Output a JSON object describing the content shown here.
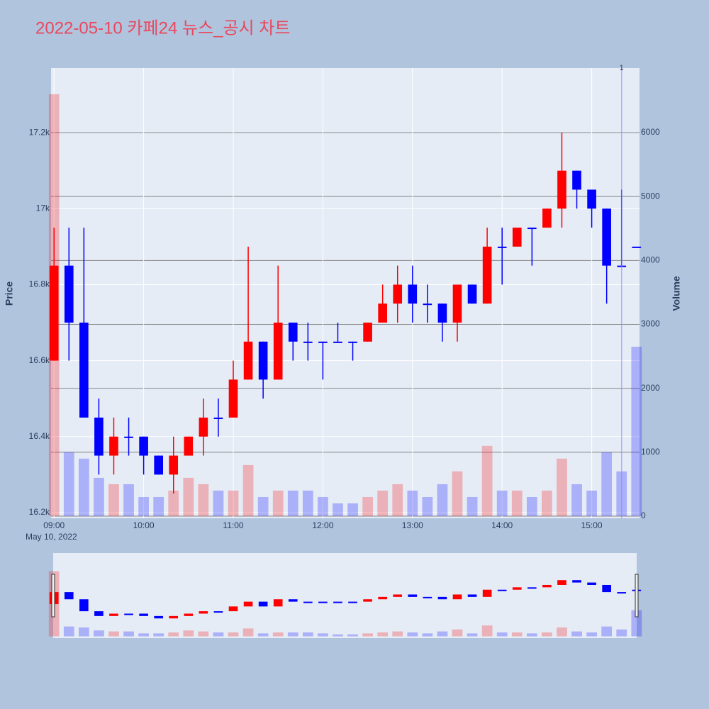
{
  "chart_data": {
    "type": "candlestick",
    "title": "2022-05-10 카페24 뉴스_공시 차트",
    "ylabel": "Price",
    "y2label": "Volume",
    "x_date_label": "May 10, 2022",
    "x": [
      "09:00",
      "09:10",
      "09:20",
      "09:30",
      "09:40",
      "09:50",
      "10:00",
      "10:10",
      "10:20",
      "10:30",
      "10:40",
      "10:50",
      "11:00",
      "11:10",
      "11:20",
      "11:30",
      "11:40",
      "11:50",
      "12:00",
      "12:10",
      "12:20",
      "12:30",
      "12:40",
      "12:50",
      "13:00",
      "13:10",
      "13:20",
      "13:30",
      "13:40",
      "13:50",
      "14:00",
      "14:10",
      "14:20",
      "14:30",
      "14:40",
      "14:50",
      "15:00",
      "15:10",
      "15:20",
      "15:30"
    ],
    "open": [
      16600,
      16850,
      16700,
      16450,
      16350,
      16400,
      16400,
      16350,
      16300,
      16350,
      16400,
      16450,
      16450,
      16550,
      16650,
      16550,
      16700,
      16650,
      16650,
      16650,
      16650,
      16650,
      16700,
      16750,
      16800,
      16750,
      16750,
      16700,
      16800,
      16750,
      16900,
      16900,
      16950,
      16950,
      17000,
      17100,
      17050,
      17000,
      16850,
      16900
    ],
    "high": [
      16950,
      16950,
      16950,
      16500,
      16450,
      16450,
      16400,
      16350,
      16400,
      16400,
      16500,
      16500,
      16600,
      16900,
      16650,
      16850,
      16700,
      16700,
      16650,
      16700,
      16650,
      16700,
      16800,
      16850,
      16850,
      16800,
      16750,
      16800,
      16800,
      16950,
      16950,
      16950,
      16950,
      17000,
      17200,
      17100,
      17050,
      17000,
      17050,
      16900
    ],
    "low": [
      16600,
      16600,
      16450,
      16300,
      16300,
      16350,
      16300,
      16300,
      16250,
      16350,
      16350,
      16400,
      16450,
      16550,
      16500,
      16550,
      16600,
      16600,
      16550,
      16650,
      16600,
      16650,
      16700,
      16700,
      16700,
      16700,
      16650,
      16650,
      16750,
      16750,
      16800,
      16900,
      16850,
      16950,
      16950,
      17000,
      16950,
      16750,
      16850,
      16900
    ],
    "close": [
      16850,
      16700,
      16450,
      16350,
      16400,
      16400,
      16350,
      16300,
      16350,
      16400,
      16450,
      16450,
      16550,
      16650,
      16550,
      16700,
      16650,
      16650,
      16650,
      16650,
      16650,
      16700,
      16750,
      16800,
      16750,
      16750,
      16700,
      16800,
      16750,
      16900,
      16900,
      16950,
      16950,
      17000,
      17100,
      17050,
      17000,
      16850,
      16850,
      16900
    ],
    "volume": [
      6600,
      1000,
      900,
      600,
      500,
      500,
      300,
      300,
      400,
      600,
      500,
      400,
      400,
      800,
      300,
      400,
      400,
      400,
      300,
      200,
      200,
      300,
      400,
      500,
      400,
      300,
      500,
      700,
      300,
      1100,
      400,
      400,
      300,
      400,
      900,
      500,
      400,
      1000,
      700,
      2650
    ],
    "increasing_color": "#ff0000",
    "decreasing_color": "#0000ff",
    "xlim": [
      "08:58",
      "15:32"
    ],
    "xticks": [
      "09:00",
      "10:00",
      "11:00",
      "12:00",
      "13:00",
      "14:00",
      "15:00"
    ],
    "ylim": [
      16185,
      17370
    ],
    "yticks": [
      {
        "value": 16200,
        "label": "16.2k"
      },
      {
        "value": 16400,
        "label": "16.4k"
      },
      {
        "value": 16600,
        "label": "16.6k"
      },
      {
        "value": 16800,
        "label": "16.8k"
      },
      {
        "value": 17000,
        "label": "17k"
      },
      {
        "value": 17200,
        "label": "17.2k"
      }
    ],
    "y2lim": [
      -33,
      7009
    ],
    "y2ticks": [
      0,
      1000,
      2000,
      3000,
      4000,
      5000,
      6000
    ],
    "annotations": [
      {
        "x": "15:20",
        "text": "1"
      }
    ]
  }
}
